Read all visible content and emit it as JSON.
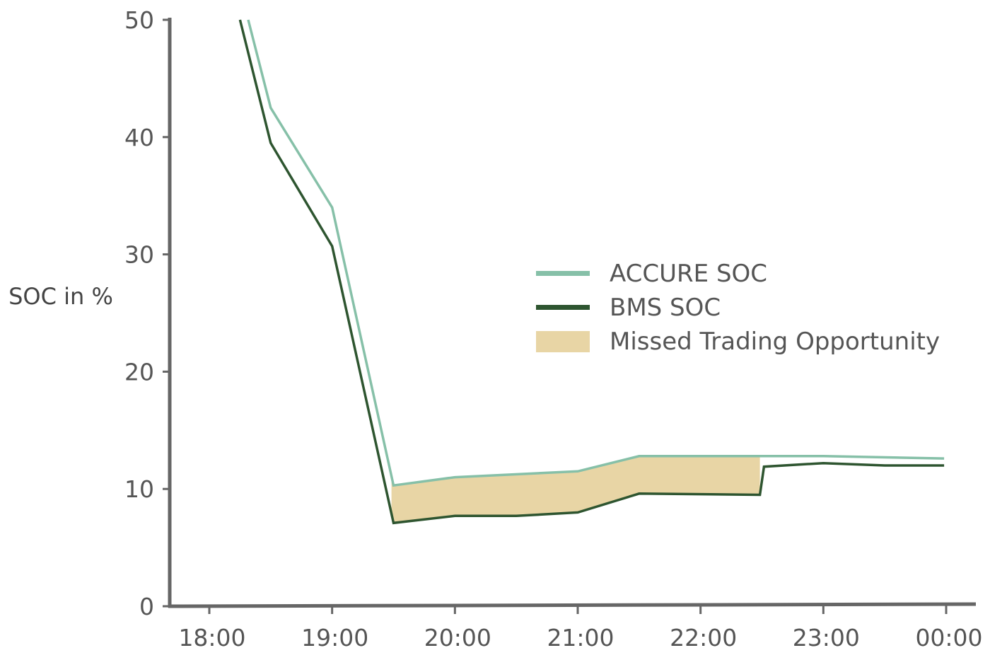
{
  "chart_data": {
    "type": "line",
    "title": "",
    "xlabel": "",
    "ylabel": "SOC in %",
    "ylim": [
      0,
      50
    ],
    "yticks": [
      0,
      10,
      20,
      30,
      40,
      50
    ],
    "xlim": [
      "18:00",
      "00:00"
    ],
    "xticks": [
      "18:00",
      "19:00",
      "20:00",
      "21:00",
      "22:00",
      "23:00",
      "00:00"
    ],
    "grid": false,
    "legend_position": "right",
    "series": [
      {
        "name": "ACCURE SOC",
        "color": "#86c0a8",
        "x": [
          "18:19",
          "18:30",
          "19:00",
          "19:30",
          "20:00",
          "21:00",
          "21:30",
          "22:30",
          "23:00",
          "23:59"
        ],
        "y": [
          50,
          42.5,
          34,
          10.3,
          11,
          11.5,
          12.8,
          12.8,
          12.8,
          12.6
        ]
      },
      {
        "name": "BMS SOC",
        "color": "#2e5530",
        "x": [
          "18:15",
          "18:30",
          "19:00",
          "19:30",
          "20:00",
          "20:30",
          "21:00",
          "21:30",
          "22:29",
          "22:31",
          "23:00",
          "23:30",
          "23:59"
        ],
        "y": [
          50,
          39.5,
          30.7,
          7.1,
          7.7,
          7.7,
          8,
          9.6,
          9.5,
          11.9,
          12.2,
          12,
          12
        ]
      }
    ],
    "shaded_region": {
      "name": "Missed Trading Opportunity",
      "color": "#e8d5a5",
      "between": [
        "ACCURE SOC",
        "BMS SOC"
      ],
      "x_range": [
        "19:29",
        "22:29"
      ]
    },
    "axis_color": "#666666"
  }
}
